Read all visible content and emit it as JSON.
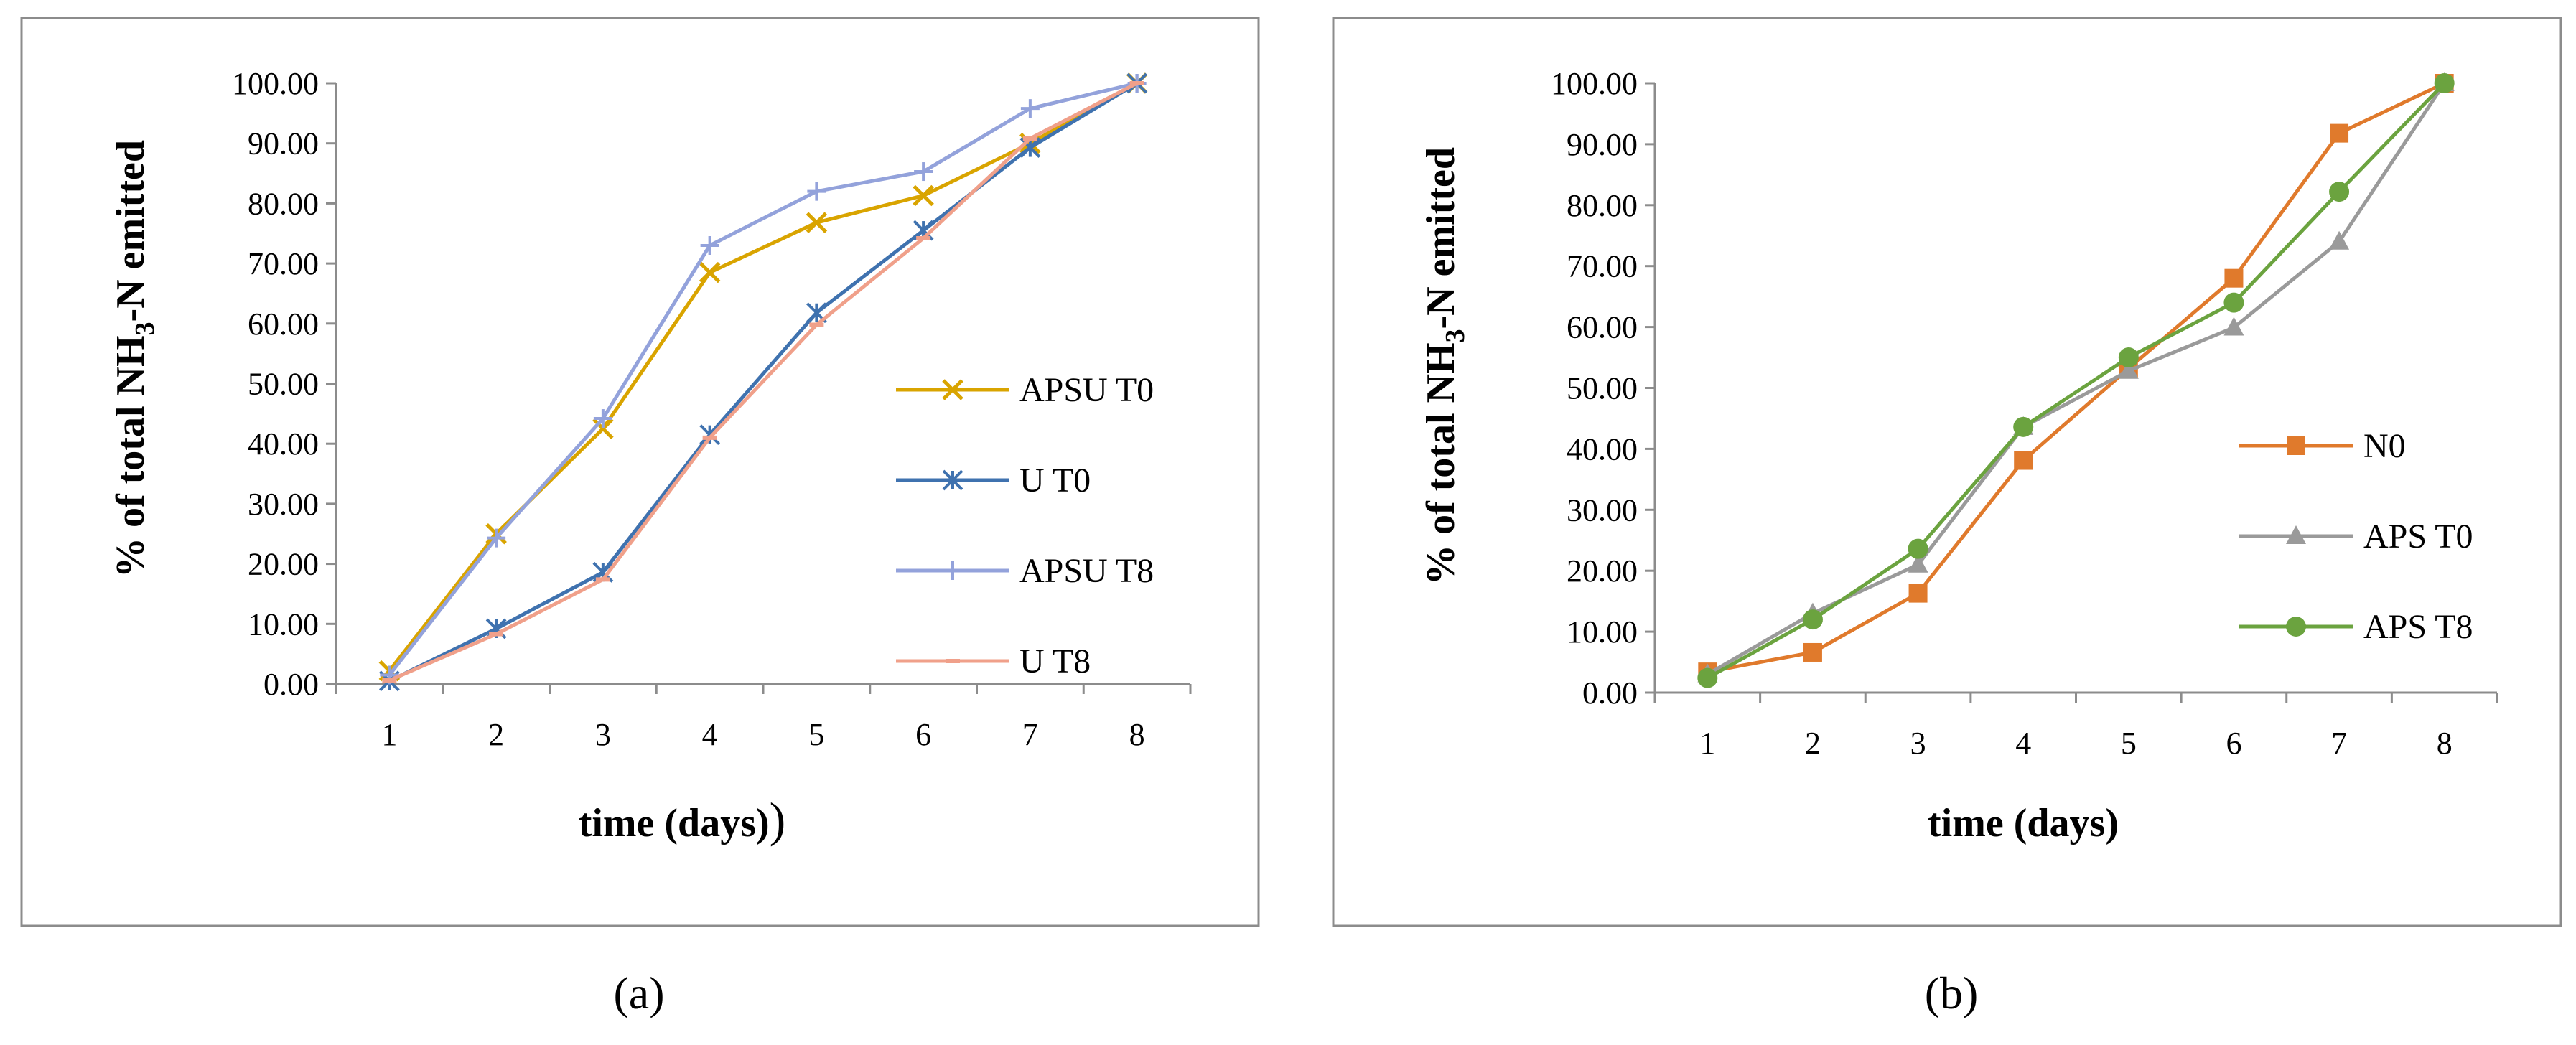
{
  "chart_data": [
    {
      "type": "line",
      "panel_label": "(a)",
      "categories": [
        "1",
        "2",
        "3",
        "4",
        "5",
        "6",
        "7",
        "8"
      ],
      "ylim": [
        0,
        100
      ],
      "ytick_labels": [
        "0.00",
        "10.00",
        "20.00",
        "30.00",
        "40.00",
        "50.00",
        "60.00",
        "70.00",
        "80.00",
        "90.00",
        "100.00"
      ],
      "xlabel": "time (days)",
      "xlabel_suffix": ")",
      "ylabel": {
        "pre": "% of total NH",
        "sub": "3",
        "post": "-N emitted"
      },
      "series": [
        {
          "name": "APSU T0",
          "color": "#D9A400",
          "marker": "x",
          "values": [
            2.2,
            25.0,
            42.5,
            68.5,
            76.8,
            81.3,
            90.0,
            100.0
          ]
        },
        {
          "name": "U T0",
          "color": "#3F72AF",
          "marker": "star",
          "values": [
            0.5,
            9.2,
            18.6,
            41.5,
            61.8,
            75.5,
            89.3,
            100.0
          ]
        },
        {
          "name": "APSU T8",
          "color": "#93A2DB",
          "marker": "plus",
          "values": [
            1.5,
            24.3,
            44.2,
            73.0,
            82.0,
            85.3,
            95.8,
            100.0
          ]
        },
        {
          "name": "U T8",
          "color": "#F0A08A",
          "marker": "dash",
          "values": [
            0.6,
            8.3,
            17.4,
            41.0,
            59.8,
            74.2,
            90.8,
            100.0
          ]
        }
      ]
    },
    {
      "type": "line",
      "panel_label": "(b)",
      "categories": [
        "1",
        "2",
        "3",
        "4",
        "5",
        "6",
        "7",
        "8"
      ],
      "ylim": [
        0,
        100
      ],
      "ytick_labels": [
        "0.00",
        "10.00",
        "20.00",
        "30.00",
        "40.00",
        "50.00",
        "60.00",
        "70.00",
        "80.00",
        "90.00",
        "100.00"
      ],
      "xlabel": "time (days)",
      "xlabel_suffix": "",
      "ylabel": {
        "pre": "% of total NH",
        "sub": "3",
        "post": "-N emitted"
      },
      "series": [
        {
          "name": "N0",
          "color": "#E07A2C",
          "marker": "square",
          "values": [
            3.4,
            6.6,
            16.3,
            38.1,
            53.2,
            68.0,
            91.8,
            100.0
          ]
        },
        {
          "name": "APS T0",
          "color": "#9A9A9A",
          "marker": "triangle",
          "values": [
            3.0,
            13.0,
            21.0,
            43.6,
            52.8,
            59.9,
            74.0,
            100.0
          ]
        },
        {
          "name": "APS T8",
          "color": "#6BA33F",
          "marker": "circle",
          "values": [
            2.4,
            12.0,
            23.6,
            43.6,
            55.0,
            64.0,
            82.2,
            100.0
          ]
        }
      ]
    }
  ]
}
